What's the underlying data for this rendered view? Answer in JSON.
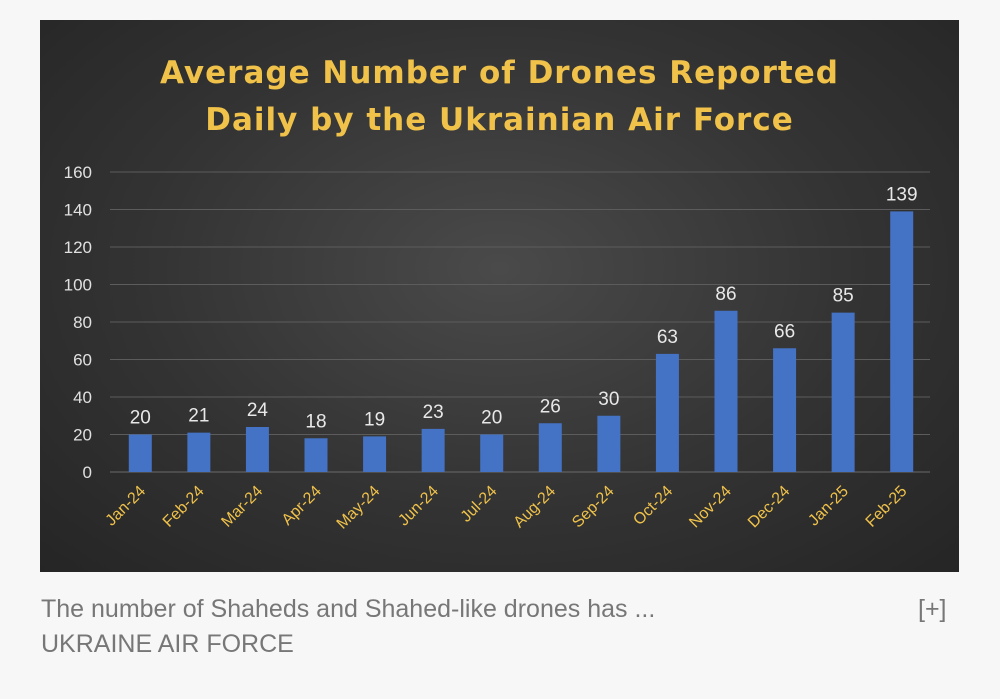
{
  "chart_data": {
    "type": "bar",
    "title_lines": [
      "Average Number of Drones Reported",
      "Daily by the Ukrainian Air Force"
    ],
    "categories": [
      "Jan-24",
      "Feb-24",
      "Mar-24",
      "Apr-24",
      "May-24",
      "Jun-24",
      "Jul-24",
      "Aug-24",
      "Sep-24",
      "Oct-24",
      "Nov-24",
      "Dec-24",
      "Jan-25",
      "Feb-25"
    ],
    "values": [
      20,
      21,
      24,
      18,
      19,
      23,
      20,
      26,
      30,
      63,
      86,
      66,
      85,
      139
    ],
    "ylim": [
      0,
      160
    ],
    "yticks": [
      0,
      20,
      40,
      60,
      80,
      100,
      120,
      140,
      160
    ],
    "grid": true,
    "legend": "none",
    "colors": {
      "bar": "#4472c4",
      "title": "#f0c24a",
      "label": "#e8e8e8",
      "tick": "#e0e0e0",
      "category": "#f0c24a",
      "grid": "#5c5c5c"
    }
  },
  "caption": {
    "text": "The number of Shaheds and Shahed-like drones has ...",
    "expand_label": "[+]",
    "source": "UKRAINE AIR FORCE"
  }
}
